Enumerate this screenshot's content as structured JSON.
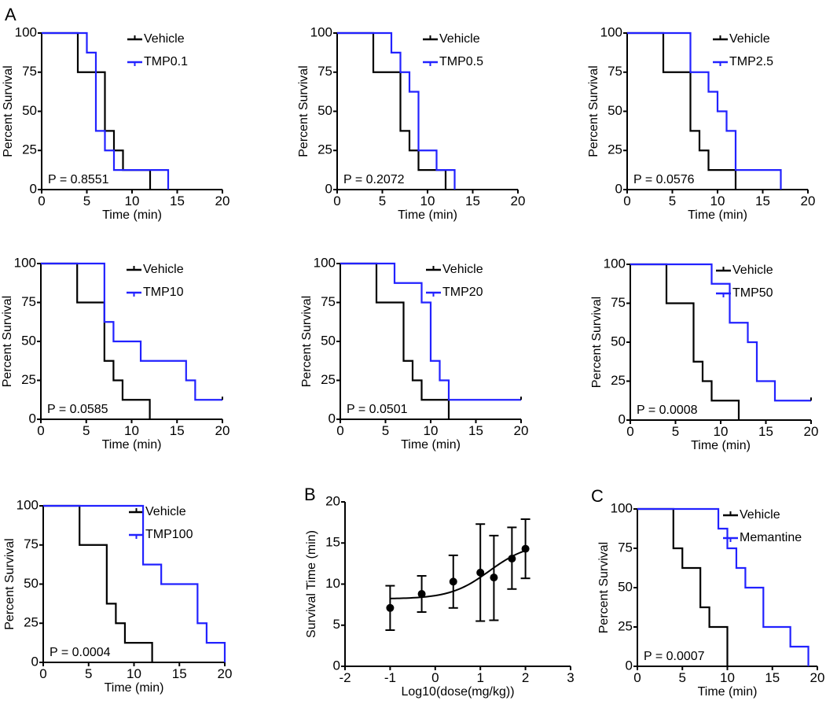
{
  "colors": {
    "vehicle": "#000000",
    "treatment": "#2222ff",
    "axis": "#000000"
  },
  "chart_data": [
    {
      "panel_label": "A",
      "type": "line",
      "subtype": "kaplan-meier-step",
      "xlabel": "Time (min)",
      "ylabel": "Percent Survival",
      "xlim": [
        0,
        20
      ],
      "ylim": [
        0,
        100
      ],
      "xticks": [
        0,
        5,
        10,
        15,
        20
      ],
      "yticks": [
        0,
        25,
        50,
        75,
        100
      ],
      "grid": false,
      "legend_position": "top-right",
      "annotation": "P = 0.8551",
      "series": [
        {
          "name": "Vehicle",
          "color": "#000000",
          "steps": [
            [
              0,
              100
            ],
            [
              4,
              75
            ],
            [
              7,
              37.5
            ],
            [
              8,
              25
            ],
            [
              9,
              12.5
            ],
            [
              12,
              0
            ]
          ],
          "end": 12,
          "censored_end": false
        },
        {
          "name": "TMP0.1",
          "color": "#2222ff",
          "steps": [
            [
              0,
              100
            ],
            [
              5,
              87.5
            ],
            [
              6,
              37.5
            ],
            [
              7,
              25
            ],
            [
              8,
              12.5
            ],
            [
              14,
              0
            ]
          ],
          "end": 14,
          "censored_end": false
        }
      ]
    },
    {
      "panel_label": "",
      "type": "line",
      "subtype": "kaplan-meier-step",
      "xlabel": "Time (min)",
      "ylabel": "Percent Survival",
      "xlim": [
        0,
        20
      ],
      "ylim": [
        0,
        100
      ],
      "xticks": [
        0,
        5,
        10,
        15,
        20
      ],
      "yticks": [
        0,
        25,
        50,
        75,
        100
      ],
      "grid": false,
      "legend_position": "top-right",
      "annotation": "P = 0.2072",
      "series": [
        {
          "name": "Vehicle",
          "color": "#000000",
          "steps": [
            [
              0,
              100
            ],
            [
              4,
              75
            ],
            [
              7,
              37.5
            ],
            [
              8,
              25
            ],
            [
              9,
              12.5
            ],
            [
              12,
              0
            ]
          ],
          "end": 12,
          "censored_end": false
        },
        {
          "name": "TMP0.5",
          "color": "#2222ff",
          "steps": [
            [
              0,
              100
            ],
            [
              6,
              87.5
            ],
            [
              7,
              75
            ],
            [
              8,
              62.5
            ],
            [
              9,
              25
            ],
            [
              11,
              12.5
            ],
            [
              13,
              0
            ]
          ],
          "end": 13,
          "censored_end": false
        }
      ]
    },
    {
      "panel_label": "",
      "type": "line",
      "subtype": "kaplan-meier-step",
      "xlabel": "Time (min)",
      "ylabel": "Percent Survival",
      "xlim": [
        0,
        20
      ],
      "ylim": [
        0,
        100
      ],
      "xticks": [
        0,
        5,
        10,
        15,
        20
      ],
      "yticks": [
        0,
        25,
        50,
        75,
        100
      ],
      "grid": false,
      "legend_position": "top-right",
      "annotation": "P = 0.0576",
      "series": [
        {
          "name": "Vehicle",
          "color": "#000000",
          "steps": [
            [
              0,
              100
            ],
            [
              4,
              75
            ],
            [
              7,
              37.5
            ],
            [
              8,
              25
            ],
            [
              9,
              12.5
            ],
            [
              12,
              0
            ]
          ],
          "end": 12,
          "censored_end": false
        },
        {
          "name": "TMP2.5",
          "color": "#2222ff",
          "steps": [
            [
              0,
              100
            ],
            [
              7,
              75
            ],
            [
              9,
              62.5
            ],
            [
              10,
              50
            ],
            [
              11,
              37.5
            ],
            [
              12,
              12.5
            ],
            [
              17,
              0
            ]
          ],
          "end": 17,
          "censored_end": false
        }
      ]
    },
    {
      "panel_label": "",
      "type": "line",
      "subtype": "kaplan-meier-step",
      "xlabel": "Time (min)",
      "ylabel": "Percent Survival",
      "xlim": [
        0,
        20
      ],
      "ylim": [
        0,
        100
      ],
      "xticks": [
        0,
        5,
        10,
        15,
        20
      ],
      "yticks": [
        0,
        25,
        50,
        75,
        100
      ],
      "grid": false,
      "legend_position": "top-right",
      "annotation": "P = 0.0585",
      "series": [
        {
          "name": "Vehicle",
          "color": "#000000",
          "steps": [
            [
              0,
              100
            ],
            [
              4,
              75
            ],
            [
              7,
              37.5
            ],
            [
              8,
              25
            ],
            [
              9,
              12.5
            ],
            [
              12,
              0
            ]
          ],
          "end": 12,
          "censored_end": false
        },
        {
          "name": "TMP10",
          "color": "#2222ff",
          "steps": [
            [
              0,
              100
            ],
            [
              7,
              62.5
            ],
            [
              8,
              50
            ],
            [
              11,
              37.5
            ],
            [
              16,
              25
            ],
            [
              17,
              12.5
            ]
          ],
          "end": 20,
          "censored_end": true
        }
      ]
    },
    {
      "panel_label": "",
      "type": "line",
      "subtype": "kaplan-meier-step",
      "xlabel": "Time (min)",
      "ylabel": "Percent Survival",
      "xlim": [
        0,
        20
      ],
      "ylim": [
        0,
        100
      ],
      "xticks": [
        0,
        5,
        10,
        15,
        20
      ],
      "yticks": [
        0,
        25,
        50,
        75,
        100
      ],
      "grid": false,
      "legend_position": "top-right",
      "annotation": "P = 0.0501",
      "series": [
        {
          "name": "Vehicle",
          "color": "#000000",
          "steps": [
            [
              0,
              100
            ],
            [
              4,
              75
            ],
            [
              7,
              37.5
            ],
            [
              8,
              25
            ],
            [
              9,
              12.5
            ],
            [
              12,
              0
            ]
          ],
          "end": 12,
          "censored_end": false
        },
        {
          "name": "TMP20",
          "color": "#2222ff",
          "steps": [
            [
              0,
              100
            ],
            [
              6,
              87.5
            ],
            [
              9,
              75
            ],
            [
              10,
              37.5
            ],
            [
              11,
              25
            ],
            [
              12,
              12.5
            ]
          ],
          "end": 20,
          "censored_end": true
        }
      ]
    },
    {
      "panel_label": "",
      "type": "line",
      "subtype": "kaplan-meier-step",
      "xlabel": "Time (min)",
      "ylabel": "Percent Survival",
      "xlim": [
        0,
        20
      ],
      "ylim": [
        0,
        100
      ],
      "xticks": [
        0,
        5,
        10,
        15,
        20
      ],
      "yticks": [
        0,
        25,
        50,
        75,
        100
      ],
      "grid": false,
      "legend_position": "top-right",
      "annotation": "P = 0.0008",
      "series": [
        {
          "name": "Vehicle",
          "color": "#000000",
          "steps": [
            [
              0,
              100
            ],
            [
              4,
              75
            ],
            [
              7,
              37.5
            ],
            [
              8,
              25
            ],
            [
              9,
              12.5
            ],
            [
              12,
              0
            ]
          ],
          "end": 12,
          "censored_end": false
        },
        {
          "name": "TMP50",
          "color": "#2222ff",
          "steps": [
            [
              0,
              100
            ],
            [
              9,
              87.5
            ],
            [
              11,
              62.5
            ],
            [
              13,
              50
            ],
            [
              14,
              25
            ],
            [
              16,
              12.5
            ]
          ],
          "end": 20,
          "censored_end": true
        }
      ]
    },
    {
      "panel_label": "",
      "type": "line",
      "subtype": "kaplan-meier-step",
      "xlabel": "Time (min)",
      "ylabel": "Percent Survival",
      "xlim": [
        0,
        20
      ],
      "ylim": [
        0,
        100
      ],
      "xticks": [
        0,
        5,
        10,
        15,
        20
      ],
      "yticks": [
        0,
        25,
        50,
        75,
        100
      ],
      "grid": false,
      "legend_position": "top-right",
      "annotation": "P = 0.0004",
      "series": [
        {
          "name": "Vehicle",
          "color": "#000000",
          "steps": [
            [
              0,
              100
            ],
            [
              4,
              75
            ],
            [
              7,
              37.5
            ],
            [
              8,
              25
            ],
            [
              9,
              12.5
            ],
            [
              12,
              0
            ]
          ],
          "end": 12,
          "censored_end": false
        },
        {
          "name": "TMP100",
          "color": "#2222ff",
          "steps": [
            [
              0,
              100
            ],
            [
              11,
              62.5
            ],
            [
              13,
              50
            ],
            [
              17,
              25
            ],
            [
              18,
              12.5
            ],
            [
              20,
              0
            ]
          ],
          "end": 20,
          "censored_end": false
        }
      ]
    },
    {
      "panel_label": "B",
      "type": "scatter",
      "xlabel": "Log10(dose(mg/kg))",
      "ylabel": "Survival Time (min)",
      "xlim": [
        -2,
        3
      ],
      "ylim": [
        0,
        20
      ],
      "xticks": [
        -2,
        -1,
        0,
        1,
        2,
        3
      ],
      "yticks": [
        0,
        5,
        10,
        15,
        20
      ],
      "grid": false,
      "points": [
        {
          "x": -1,
          "y": 7.1,
          "lower": 4.4,
          "upper": 9.8
        },
        {
          "x": -0.3,
          "y": 8.8,
          "lower": 6.6,
          "upper": 11.0
        },
        {
          "x": 0.4,
          "y": 10.3,
          "lower": 7.1,
          "upper": 13.5
        },
        {
          "x": 1,
          "y": 11.4,
          "lower": 5.5,
          "upper": 17.3
        },
        {
          "x": 1.3,
          "y": 10.8,
          "lower": 5.6,
          "upper": 15.9
        },
        {
          "x": 1.7,
          "y": 13.1,
          "lower": 9.4,
          "upper": 16.9
        },
        {
          "x": 2,
          "y": 14.3,
          "lower": 10.7,
          "upper": 17.9
        }
      ],
      "fit_curve": {
        "model": "sigmoidal dose-response",
        "bottom": 8.2,
        "top": 15,
        "log_ec50": 1.2,
        "hill": 1,
        "x_range": [
          -1,
          2
        ]
      }
    },
    {
      "panel_label": "C",
      "type": "line",
      "subtype": "kaplan-meier-step",
      "xlabel": "Time (min)",
      "ylabel": "Percent Survival",
      "xlim": [
        0,
        20
      ],
      "ylim": [
        0,
        100
      ],
      "xticks": [
        0,
        5,
        10,
        15,
        20
      ],
      "yticks": [
        0,
        25,
        50,
        75,
        100
      ],
      "grid": false,
      "legend_position": "top-right",
      "annotation": "P = 0.0007",
      "series": [
        {
          "name": "Vehicle",
          "color": "#000000",
          "steps": [
            [
              0,
              100
            ],
            [
              4,
              75
            ],
            [
              5,
              62.5
            ],
            [
              7,
              37.5
            ],
            [
              8,
              25
            ],
            [
              10,
              0
            ]
          ],
          "end": 10,
          "censored_end": false
        },
        {
          "name": "Memantine",
          "color": "#2222ff",
          "steps": [
            [
              0,
              100
            ],
            [
              9,
              87.5
            ],
            [
              10,
              75
            ],
            [
              11,
              62.5
            ],
            [
              12,
              50
            ],
            [
              14,
              25
            ],
            [
              17,
              12.5
            ],
            [
              19,
              0
            ]
          ],
          "end": 19,
          "censored_end": false
        }
      ]
    }
  ]
}
